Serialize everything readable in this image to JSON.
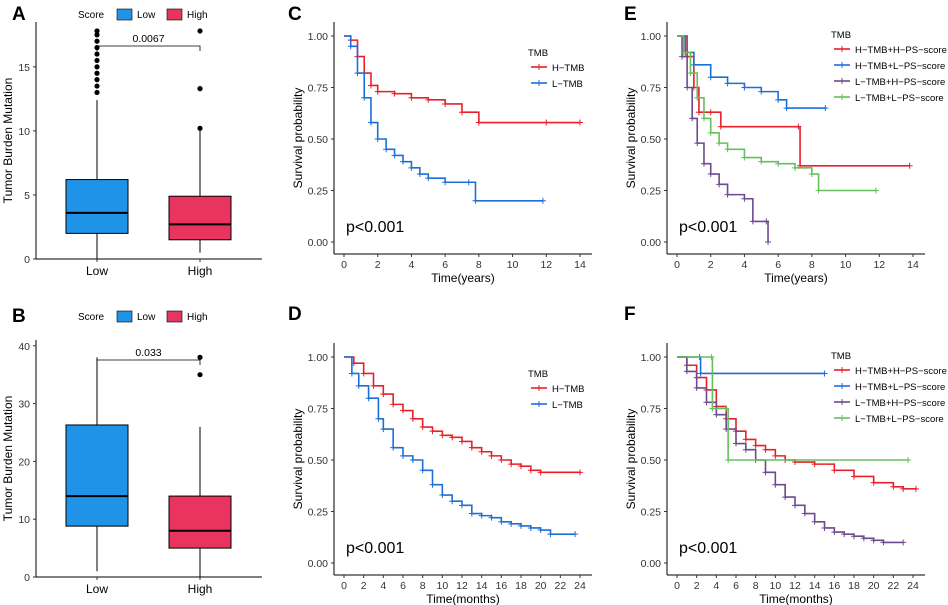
{
  "colors": {
    "red": "#e8202a",
    "blue": "#1c6fd9",
    "purple": "#6d4a8c",
    "green": "#66c05a",
    "box_low": "#1f93e8",
    "box_high": "#e8345e"
  },
  "chart_data": [
    {
      "panel": "A",
      "type": "box",
      "ylabel": "Tumor Burden Mutation",
      "ylim": [
        0,
        18.5
      ],
      "yticks": [
        0,
        5,
        10,
        15
      ],
      "categories": [
        "Low",
        "High"
      ],
      "legend_title": "Score",
      "legend_items": [
        "Low",
        "High"
      ],
      "pvalue": "0.0067",
      "boxes": [
        {
          "name": "Low",
          "min": 0,
          "q1": 2,
          "median": 3.6,
          "q3": 6.2,
          "max": 12.4,
          "outliers": [
            13,
            13.5,
            14,
            14.5,
            15,
            15.5,
            16,
            16.5,
            17,
            17.5,
            17.8
          ]
        },
        {
          "name": "High",
          "min": 0.5,
          "q1": 1.5,
          "median": 2.7,
          "q3": 4.9,
          "max": 10,
          "outliers": [
            10.2,
            13.3,
            17.8
          ]
        }
      ]
    },
    {
      "panel": "B",
      "type": "box",
      "ylabel": "Tumor Burden Mutation",
      "ylim": [
        0,
        41
      ],
      "yticks": [
        0,
        10,
        20,
        30,
        40
      ],
      "categories": [
        "Low",
        "High"
      ],
      "legend_title": "Score",
      "legend_items": [
        "Low",
        "High"
      ],
      "pvalue": "0.033",
      "boxes": [
        {
          "name": "Low",
          "min": 1,
          "q1": 8.8,
          "median": 14,
          "q3": 26.3,
          "max": 38,
          "outliers": []
        },
        {
          "name": "High",
          "min": 0,
          "q1": 5,
          "median": 8,
          "q3": 14,
          "max": 26,
          "outliers": [
            35,
            38
          ]
        }
      ]
    },
    {
      "panel": "C",
      "type": "line",
      "xlabel": "Time(years)",
      "ylabel": "Survival probability",
      "xlim": [
        0,
        14
      ],
      "xticks": [
        0,
        2,
        4,
        6,
        8,
        10,
        12,
        14
      ],
      "ylim": [
        0,
        1
      ],
      "yticks": [
        "0.00",
        "0.25",
        "0.50",
        "0.75",
        "1.00"
      ],
      "legend_title": "TMB",
      "pvalue": "p<0.001",
      "series": [
        {
          "name": "H−TMB",
          "color": "red",
          "points": [
            [
              0,
              1
            ],
            [
              0.4,
              0.98
            ],
            [
              0.8,
              0.9
            ],
            [
              1.2,
              0.82
            ],
            [
              1.6,
              0.76
            ],
            [
              2,
              0.73
            ],
            [
              3,
              0.72
            ],
            [
              4,
              0.7
            ],
            [
              5,
              0.69
            ],
            [
              6,
              0.67
            ],
            [
              7,
              0.63
            ],
            [
              8,
              0.58
            ],
            [
              12,
              0.58
            ],
            [
              14,
              0.58
            ]
          ]
        },
        {
          "name": "L−TMB",
          "color": "blue",
          "points": [
            [
              0,
              1
            ],
            [
              0.4,
              0.95
            ],
            [
              0.8,
              0.82
            ],
            [
              1.2,
              0.7
            ],
            [
              1.6,
              0.58
            ],
            [
              2,
              0.5
            ],
            [
              2.5,
              0.45
            ],
            [
              3,
              0.42
            ],
            [
              3.5,
              0.39
            ],
            [
              4,
              0.36
            ],
            [
              4.5,
              0.33
            ],
            [
              5,
              0.31
            ],
            [
              6,
              0.29
            ],
            [
              7.4,
              0.29
            ],
            [
              7.8,
              0.2
            ],
            [
              11.8,
              0.2
            ]
          ]
        }
      ]
    },
    {
      "panel": "D",
      "type": "line",
      "xlabel": "Time(months)",
      "ylabel": "Survival probability",
      "xlim": [
        0,
        24
      ],
      "xticks": [
        0,
        2,
        4,
        6,
        8,
        10,
        12,
        14,
        16,
        18,
        20,
        22,
        24
      ],
      "ylim": [
        0,
        1
      ],
      "yticks": [
        "0.00",
        "0.25",
        "0.50",
        "0.75",
        "1.00"
      ],
      "legend_title": "TMB",
      "pvalue": "p<0.001",
      "series": [
        {
          "name": "H−TMB",
          "color": "red",
          "points": [
            [
              0,
              1
            ],
            [
              1,
              0.97
            ],
            [
              2,
              0.92
            ],
            [
              3,
              0.86
            ],
            [
              4,
              0.82
            ],
            [
              5,
              0.77
            ],
            [
              6,
              0.74
            ],
            [
              7,
              0.7
            ],
            [
              8,
              0.66
            ],
            [
              9,
              0.64
            ],
            [
              10,
              0.62
            ],
            [
              11,
              0.61
            ],
            [
              12,
              0.59
            ],
            [
              13,
              0.56
            ],
            [
              14,
              0.54
            ],
            [
              15,
              0.52
            ],
            [
              16,
              0.5
            ],
            [
              17,
              0.48
            ],
            [
              18,
              0.47
            ],
            [
              19,
              0.45
            ],
            [
              20,
              0.44
            ],
            [
              24,
              0.44
            ]
          ]
        },
        {
          "name": "L−TMB",
          "color": "blue",
          "points": [
            [
              0,
              1
            ],
            [
              0.8,
              0.92
            ],
            [
              1.5,
              0.86
            ],
            [
              2.5,
              0.8
            ],
            [
              3.5,
              0.7
            ],
            [
              4,
              0.65
            ],
            [
              5,
              0.56
            ],
            [
              6,
              0.52
            ],
            [
              7,
              0.5
            ],
            [
              8,
              0.45
            ],
            [
              9,
              0.38
            ],
            [
              10,
              0.33
            ],
            [
              11,
              0.3
            ],
            [
              12,
              0.28
            ],
            [
              13,
              0.24
            ],
            [
              14,
              0.23
            ],
            [
              15,
              0.22
            ],
            [
              16,
              0.2
            ],
            [
              17,
              0.19
            ],
            [
              18,
              0.18
            ],
            [
              19,
              0.17
            ],
            [
              20,
              0.16
            ],
            [
              21,
              0.14
            ],
            [
              23.5,
              0.14
            ]
          ]
        }
      ]
    },
    {
      "panel": "E",
      "type": "line",
      "xlabel": "Time(years)",
      "ylabel": "Survival probability",
      "xlim": [
        0,
        14
      ],
      "xticks": [
        0,
        2,
        4,
        6,
        8,
        10,
        12,
        14
      ],
      "ylim": [
        0,
        1
      ],
      "yticks": [
        "0.00",
        "0.25",
        "0.50",
        "0.75",
        "1.00"
      ],
      "legend_title": "TMB",
      "pvalue": "p<0.001",
      "series": [
        {
          "name": "H−TMB+H−PS−score",
          "color": "red",
          "points": [
            [
              0,
              1
            ],
            [
              0.6,
              0.9
            ],
            [
              1,
              0.75
            ],
            [
              1.3,
              0.63
            ],
            [
              2,
              0.63
            ],
            [
              2.6,
              0.56
            ],
            [
              7.2,
              0.56
            ],
            [
              7.3,
              0.37
            ],
            [
              13.8,
              0.37
            ]
          ]
        },
        {
          "name": "H−TMB+L−PS−score",
          "color": "blue",
          "points": [
            [
              0,
              1
            ],
            [
              0.5,
              0.92
            ],
            [
              1,
              0.86
            ],
            [
              2,
              0.8
            ],
            [
              3,
              0.77
            ],
            [
              4,
              0.75
            ],
            [
              5,
              0.73
            ],
            [
              6,
              0.69
            ],
            [
              6.5,
              0.65
            ],
            [
              8.8,
              0.65
            ]
          ]
        },
        {
          "name": "L−TMB+H−PS−score",
          "color": "purple",
          "points": [
            [
              0,
              1
            ],
            [
              0.3,
              0.9
            ],
            [
              0.6,
              0.75
            ],
            [
              0.9,
              0.6
            ],
            [
              1.2,
              0.48
            ],
            [
              1.6,
              0.38
            ],
            [
              2,
              0.33
            ],
            [
              2.5,
              0.28
            ],
            [
              3,
              0.23
            ],
            [
              4,
              0.21
            ],
            [
              4.5,
              0.1
            ],
            [
              5.3,
              0.1
            ],
            [
              5.4,
              0
            ]
          ]
        },
        {
          "name": "L−TMB+L−PS−score",
          "color": "green",
          "points": [
            [
              0,
              1
            ],
            [
              0.4,
              0.92
            ],
            [
              0.8,
              0.82
            ],
            [
              1.2,
              0.7
            ],
            [
              1.6,
              0.6
            ],
            [
              2,
              0.53
            ],
            [
              2.5,
              0.48
            ],
            [
              3,
              0.45
            ],
            [
              4,
              0.41
            ],
            [
              5,
              0.39
            ],
            [
              6,
              0.38
            ],
            [
              7,
              0.36
            ],
            [
              8,
              0.33
            ],
            [
              8.4,
              0.25
            ],
            [
              11.8,
              0.25
            ]
          ]
        }
      ]
    },
    {
      "panel": "F",
      "type": "line",
      "xlabel": "Time(months)",
      "ylabel": "Survival probability",
      "xlim": [
        0,
        24
      ],
      "xticks": [
        0,
        2,
        4,
        6,
        8,
        10,
        12,
        14,
        16,
        18,
        20,
        22,
        24
      ],
      "ylim": [
        0,
        1
      ],
      "yticks": [
        "0.00",
        "0.25",
        "0.50",
        "0.75",
        "1.00"
      ],
      "legend_title": "TMB",
      "pvalue": "p<0.001",
      "series": [
        {
          "name": "H−TMB+H−PS−score",
          "color": "red",
          "points": [
            [
              0,
              1
            ],
            [
              1,
              0.96
            ],
            [
              2,
              0.9
            ],
            [
              3,
              0.84
            ],
            [
              4,
              0.76
            ],
            [
              5,
              0.7
            ],
            [
              6,
              0.64
            ],
            [
              7,
              0.6
            ],
            [
              8,
              0.57
            ],
            [
              9,
              0.55
            ],
            [
              10,
              0.52
            ],
            [
              11,
              0.5
            ],
            [
              12,
              0.49
            ],
            [
              14,
              0.48
            ],
            [
              16,
              0.45
            ],
            [
              18,
              0.42
            ],
            [
              20,
              0.39
            ],
            [
              22,
              0.37
            ],
            [
              23,
              0.36
            ],
            [
              24.3,
              0.36
            ]
          ]
        },
        {
          "name": "H−TMB+L−PS−score",
          "color": "blue",
          "points": [
            [
              0,
              1
            ],
            [
              2.3,
              1
            ],
            [
              2.4,
              0.92
            ],
            [
              15,
              0.92
            ]
          ]
        },
        {
          "name": "L−TMB+H−PS−score",
          "color": "purple",
          "points": [
            [
              0,
              1
            ],
            [
              1,
              0.93
            ],
            [
              2,
              0.85
            ],
            [
              3,
              0.78
            ],
            [
              4,
              0.72
            ],
            [
              5,
              0.65
            ],
            [
              6,
              0.58
            ],
            [
              7,
              0.55
            ],
            [
              8,
              0.5
            ],
            [
              9,
              0.44
            ],
            [
              10,
              0.38
            ],
            [
              11,
              0.32
            ],
            [
              12,
              0.28
            ],
            [
              13,
              0.24
            ],
            [
              14,
              0.2
            ],
            [
              15,
              0.17
            ],
            [
              16,
              0.15
            ],
            [
              17,
              0.14
            ],
            [
              18,
              0.13
            ],
            [
              19,
              0.12
            ],
            [
              20,
              0.11
            ],
            [
              21,
              0.1
            ],
            [
              23,
              0.1
            ]
          ]
        },
        {
          "name": "L−TMB+L−PS−score",
          "color": "green",
          "points": [
            [
              0,
              1
            ],
            [
              3.5,
              1
            ],
            [
              3.6,
              0.75
            ],
            [
              5,
              0.75
            ],
            [
              5.2,
              0.5
            ],
            [
              23.5,
              0.5
            ]
          ]
        }
      ]
    }
  ]
}
